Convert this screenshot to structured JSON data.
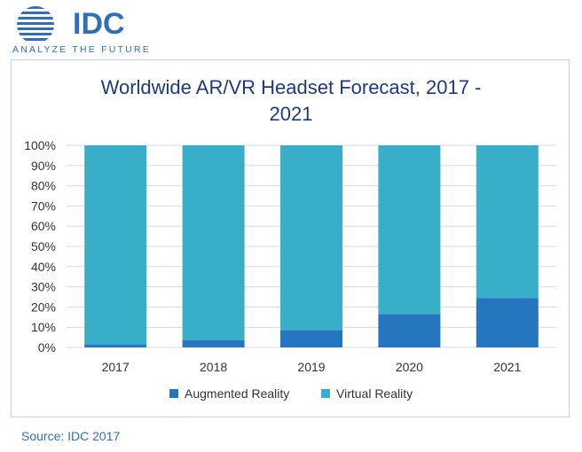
{
  "logo": {
    "name": "IDC",
    "tagline": "ANALYZE THE FUTURE"
  },
  "source": "Source: IDC 2017",
  "colors": {
    "ar": "#2576be",
    "vr": "#38aec8",
    "grid": "#d9d9d9",
    "title": "#1f3a7a",
    "brand": "#2e6fb7"
  },
  "chart_data": {
    "type": "bar",
    "stacked": true,
    "normalized": true,
    "title_lines": [
      "Worldwide AR/VR Headset Forecast, 2017 -",
      "2021"
    ],
    "categories": [
      "2017",
      "2018",
      "2019",
      "2020",
      "2021"
    ],
    "series": [
      {
        "name": "Augmented Reality",
        "values": [
          1.5,
          3.5,
          8.5,
          16.5,
          24.5
        ]
      },
      {
        "name": "Virtual Reality",
        "values": [
          98.5,
          96.5,
          91.5,
          83.5,
          75.5
        ]
      }
    ],
    "yticks": [
      "0%",
      "10%",
      "20%",
      "30%",
      "40%",
      "50%",
      "60%",
      "70%",
      "80%",
      "90%",
      "100%"
    ],
    "ylim": [
      0,
      100
    ],
    "legend_position": "bottom"
  }
}
